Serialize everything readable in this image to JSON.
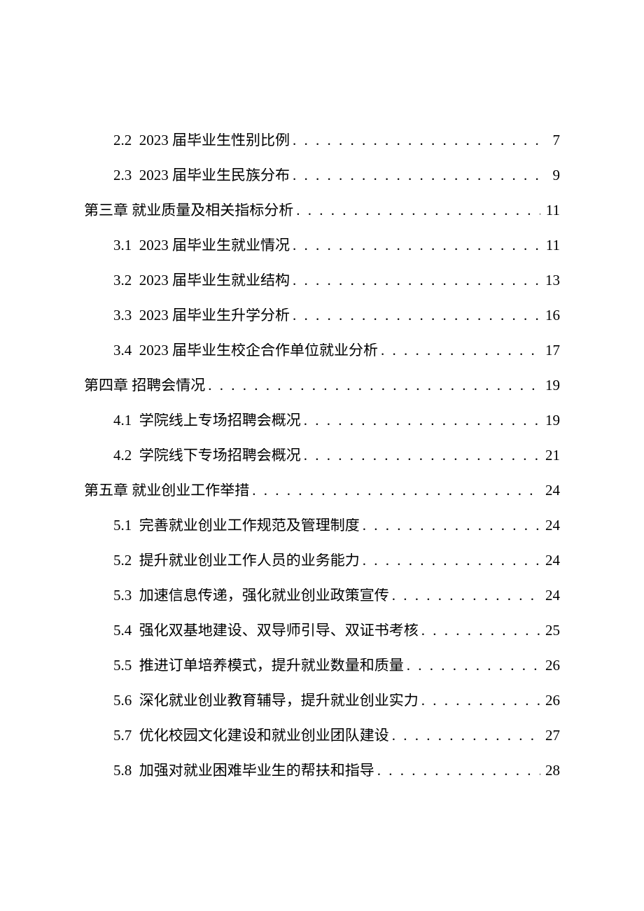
{
  "page": {
    "background_color": "#ffffff",
    "text_color": "#000000",
    "font_family": "SimSun",
    "font_size_pt": 16
  },
  "toc": [
    {
      "level": 2,
      "num": "2.2",
      "title": "2023 届毕业生性别比例",
      "page": "7"
    },
    {
      "level": 2,
      "num": "2.3",
      "title": "2023 届毕业生民族分布",
      "page": "9"
    },
    {
      "level": 1,
      "num": "",
      "title": "第三章 就业质量及相关指标分析",
      "page": "11"
    },
    {
      "level": 2,
      "num": "3.1",
      "title": "2023 届毕业生就业情况",
      "page": "11"
    },
    {
      "level": 2,
      "num": "3.2",
      "title": "2023 届毕业生就业结构",
      "page": "13"
    },
    {
      "level": 2,
      "num": "3.3",
      "title": "2023 届毕业生升学分析",
      "page": "16"
    },
    {
      "level": 2,
      "num": "3.4",
      "title": "2023 届毕业生校企合作单位就业分析",
      "page": "17"
    },
    {
      "level": 1,
      "num": "",
      "title": "第四章 招聘会情况",
      "page": "19"
    },
    {
      "level": 2,
      "num": "4.1",
      "title": "学院线上专场招聘会概况",
      "page": "19"
    },
    {
      "level": 2,
      "num": "4.2",
      "title": "学院线下专场招聘会概况",
      "page": "21"
    },
    {
      "level": 1,
      "num": "",
      "title": "第五章 就业创业工作举措",
      "page": "24"
    },
    {
      "level": 2,
      "num": "5.1",
      "title": "完善就业创业工作规范及管理制度",
      "page": "24"
    },
    {
      "level": 2,
      "num": "5.2",
      "title": "提升就业创业工作人员的业务能力",
      "page": "24"
    },
    {
      "level": 2,
      "num": "5.3",
      "title": "加速信息传递，强化就业创业政策宣传",
      "page": "24"
    },
    {
      "level": 2,
      "num": "5.4",
      "title": "强化双基地建设、双导师引导、双证书考核",
      "page": "25"
    },
    {
      "level": 2,
      "num": "5.5",
      "title": "推进订单培养模式，提升就业数量和质量",
      "page": "26"
    },
    {
      "level": 2,
      "num": "5.6",
      "title": "深化就业创业教育辅导，提升就业创业实力",
      "page": "26"
    },
    {
      "level": 2,
      "num": "5.7",
      "title": "优化校园文化建设和就业创业团队建设",
      "page": "27"
    },
    {
      "level": 2,
      "num": "5.8",
      "title": "加强对就业困难毕业生的帮扶和指导",
      "page": "28"
    }
  ]
}
